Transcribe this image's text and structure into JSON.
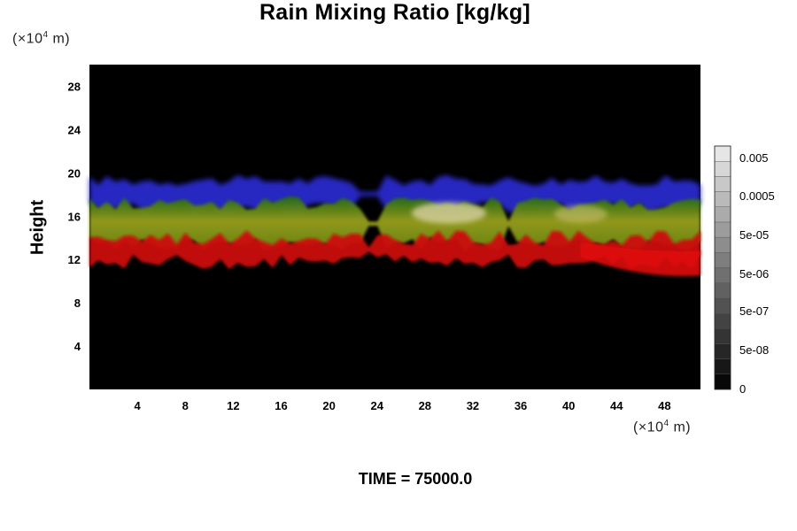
{
  "chart_data": {
    "type": "heatmap",
    "title": "Rain Mixing Ratio [kg/kg]",
    "ylabel": "Height",
    "xunit": {
      "prefix": "(×10",
      "exp": "4",
      "suffix": " m)"
    },
    "yunit": {
      "prefix": "(×10",
      "exp": "4",
      "suffix": " m)"
    },
    "xlim": [
      0,
      51
    ],
    "ylim": [
      0,
      30
    ],
    "xticks": [
      4,
      8,
      12,
      16,
      20,
      24,
      28,
      32,
      36,
      40,
      44,
      48
    ],
    "yticks": [
      4,
      8,
      12,
      16,
      20,
      24,
      28
    ],
    "background": "#000000",
    "layers": [
      {
        "color": "#2a2ccc",
        "description_range_y": [
          17,
          19.5
        ],
        "x": [
          0,
          51
        ]
      },
      {
        "color": "#9aa020",
        "description_range_y": [
          13.5,
          17
        ],
        "x": [
          0,
          51
        ]
      },
      {
        "color": "#cc1010",
        "description_range_y": [
          10.5,
          14
        ],
        "x": [
          0,
          51
        ]
      }
    ],
    "colorbar": {
      "labels": [
        "0.005",
        "0.0005",
        "5e-05",
        "5e-06",
        "5e-07",
        "5e-08",
        "0"
      ],
      "levels": 16
    },
    "footer": "TIME = 75000.0"
  }
}
